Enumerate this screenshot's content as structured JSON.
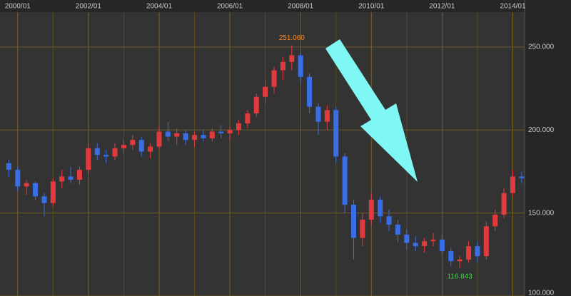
{
  "chart_data": {
    "type": "candlestick",
    "x": [
      "1999/10",
      "2000/01",
      "2000/04",
      "2000/07",
      "2000/10",
      "2001/01",
      "2001/04",
      "2001/07",
      "2001/10",
      "2002/01",
      "2002/04",
      "2002/07",
      "2002/10",
      "2003/01",
      "2003/04",
      "2003/07",
      "2003/10",
      "2004/01",
      "2004/04",
      "2004/07",
      "2004/10",
      "2005/01",
      "2005/04",
      "2005/07",
      "2005/10",
      "2006/01",
      "2006/04",
      "2006/07",
      "2006/10",
      "2007/01",
      "2007/04",
      "2007/07",
      "2007/10",
      "2008/01",
      "2008/04",
      "2008/07",
      "2008/10",
      "2009/01",
      "2009/04",
      "2009/07",
      "2009/10",
      "2010/01",
      "2010/04",
      "2010/07",
      "2010/10",
      "2011/01",
      "2011/04",
      "2011/07",
      "2011/10",
      "2012/01",
      "2012/04",
      "2012/07",
      "2012/10",
      "2013/01",
      "2013/04",
      "2013/07",
      "2013/10",
      "2014/01",
      "2014/04"
    ],
    "open": [
      180,
      176,
      166,
      168,
      160,
      156,
      169,
      172,
      170,
      176,
      189,
      185,
      184,
      189,
      191,
      194,
      187,
      190,
      199,
      196,
      198,
      194,
      197,
      195,
      199,
      198,
      200,
      204,
      210,
      220,
      226,
      236,
      241,
      245,
      232,
      214,
      205,
      212,
      184,
      155,
      135,
      146,
      158,
      148,
      143,
      137,
      132,
      130,
      133,
      134,
      127,
      121,
      122,
      130,
      124,
      142,
      149,
      162,
      172
    ],
    "high": [
      182,
      178,
      170,
      169,
      162,
      171,
      176,
      178,
      178,
      192,
      192,
      188,
      192,
      194,
      197,
      196,
      192,
      202,
      205,
      201,
      200,
      199,
      200,
      201,
      203,
      202,
      206,
      212,
      222,
      230,
      238,
      244,
      251.06,
      247,
      234,
      216,
      215,
      214,
      186,
      158,
      150,
      162,
      160,
      152,
      146,
      140,
      136,
      135,
      138,
      137,
      129,
      124,
      133,
      133,
      145,
      152,
      165,
      176,
      175
    ],
    "low": [
      172,
      163,
      161,
      158,
      148,
      154,
      165,
      168,
      167,
      174,
      182,
      180,
      182,
      186,
      188,
      184,
      183,
      188,
      193,
      191,
      191,
      190,
      193,
      193,
      195,
      194,
      197,
      201,
      208,
      216,
      222,
      230,
      236,
      228,
      210,
      197,
      200,
      180,
      150,
      122,
      130,
      143,
      144,
      139,
      132,
      128,
      127,
      126,
      130,
      125,
      118,
      116.843,
      120,
      120,
      122,
      139,
      147,
      160,
      168
    ],
    "close": [
      176,
      166,
      168,
      160,
      156,
      169,
      172,
      170,
      176,
      189,
      185,
      184,
      189,
      191,
      194,
      187,
      190,
      199,
      196,
      198,
      194,
      197,
      195,
      199,
      198,
      200,
      204,
      210,
      220,
      226,
      236,
      241,
      245,
      232,
      214,
      205,
      212,
      184,
      155,
      135,
      146,
      158,
      148,
      143,
      137,
      132,
      130,
      133,
      134,
      127,
      121,
      122,
      130,
      124,
      142,
      149,
      162,
      172,
      171
    ],
    "up_color": "#e23b3f",
    "down_color": "#3a6ee6",
    "ylim": [
      100,
      271
    ],
    "yticks": [
      {
        "value": 100,
        "label": "100.000"
      },
      {
        "value": 150,
        "label": "150.000"
      },
      {
        "value": 200,
        "label": "200.000"
      },
      {
        "value": 250,
        "label": "250.000"
      }
    ],
    "xlim": [
      "1999/07",
      "2014/05"
    ],
    "xticks": [
      "2000/01",
      "2002/01",
      "2004/01",
      "2006/01",
      "2008/01",
      "2010/01",
      "2012/01",
      "2014/01"
    ],
    "annotations": [
      {
        "label": "251.060",
        "x": "2007/10",
        "value": 251.06,
        "color": "#ff8a1c"
      },
      {
        "label": "116.843",
        "x": "2012/07",
        "value": 116.843,
        "color": "#3fd23f"
      }
    ],
    "grid": true
  }
}
